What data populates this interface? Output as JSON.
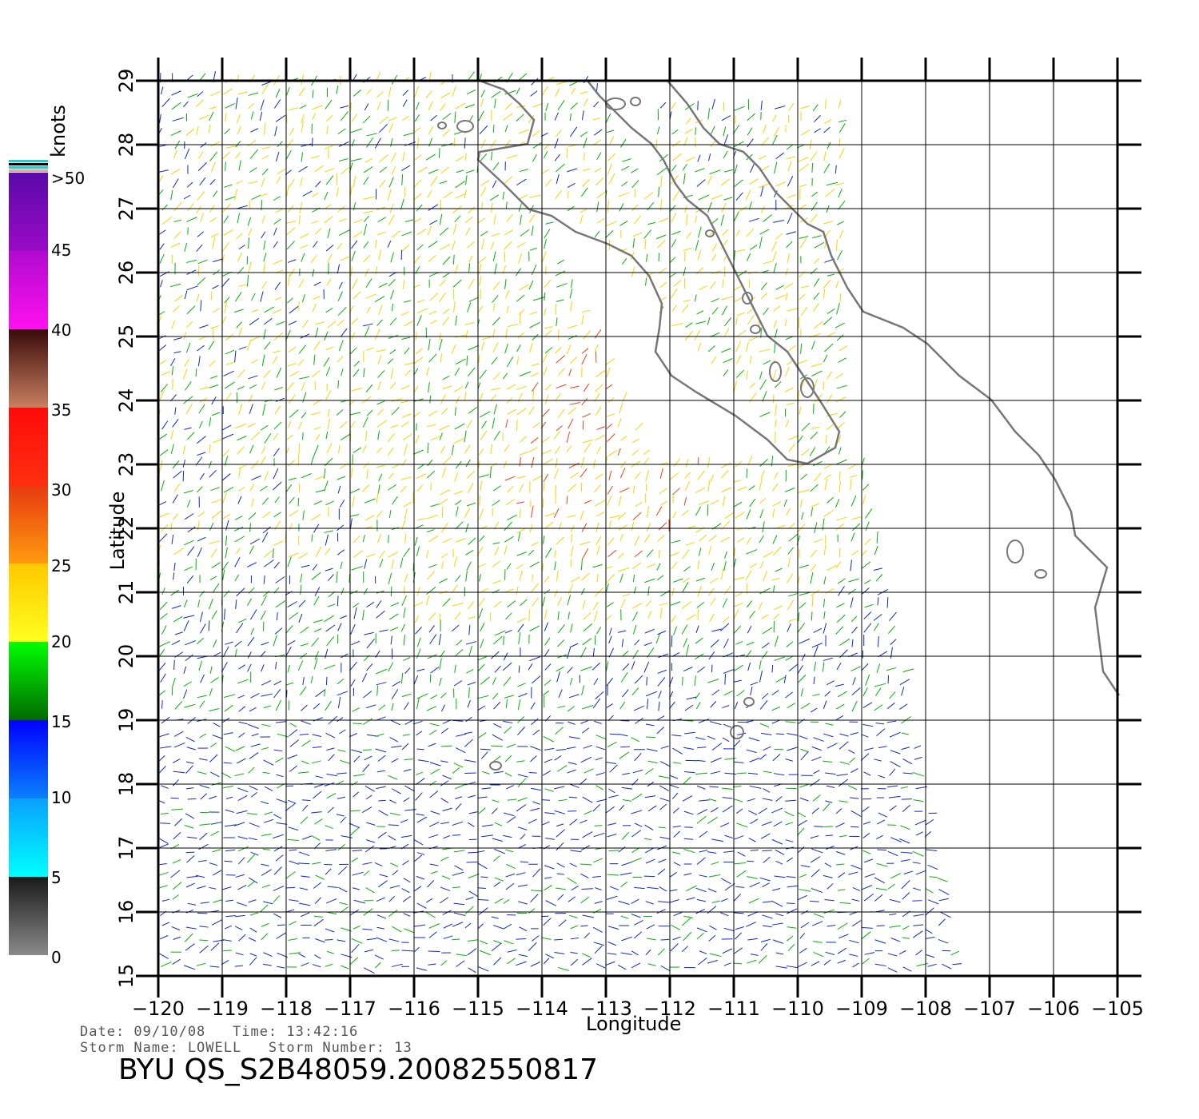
{
  "axes": {
    "xlabel": "Longitude",
    "ylabel": "Latitude",
    "lon_ticks": [
      "−120",
      "−119",
      "−118",
      "−117",
      "−116",
      "−115",
      "−114",
      "−113",
      "−112",
      "−111",
      "−110",
      "−109",
      "−108",
      "−107",
      "−106",
      "−105"
    ],
    "lat_ticks": [
      "15",
      "16",
      "17",
      "18",
      "19",
      "20",
      "21",
      "22",
      "23",
      "24",
      "25",
      "26",
      "27",
      "28",
      "29"
    ],
    "lon_range": [
      -120,
      -105
    ],
    "lat_range": [
      15,
      29
    ]
  },
  "colorbar": {
    "unit": "knots",
    "labels": [
      ">50",
      "45",
      "40",
      "35",
      "30",
      "25",
      "20",
      "15",
      "10",
      "5",
      "0"
    ],
    "bands": [
      {
        "range": "45-50",
        "top": "#5a0aa8",
        "bottom": "#9a0ac8"
      },
      {
        "range": "40-45",
        "top": "#b00ad0",
        "bottom": "#ff10f0"
      },
      {
        "range": "35-40",
        "top": "#3a0a0a",
        "bottom": "#c88060"
      },
      {
        "range": "30-35",
        "top": "#ff0a0a",
        "bottom": "#ff3010"
      },
      {
        "range": "25-30",
        "top": "#e83a10",
        "bottom": "#ff9a10"
      },
      {
        "range": "20-25",
        "top": "#ffc800",
        "bottom": "#ffff20"
      },
      {
        "range": "15-20",
        "top": "#00ff00",
        "bottom": "#006a00"
      },
      {
        "range": "10-15",
        "top": "#0000ff",
        "bottom": "#0a80ff"
      },
      {
        "range": "5-10",
        "top": "#0aa0ff",
        "bottom": "#00ffff"
      },
      {
        "range": "0-5",
        "top": "#1a1a1a",
        "bottom": "#8a8a8a"
      }
    ]
  },
  "meta": {
    "date_line": "Date: 09/10/08   Time: 13:42:16",
    "storm_line": "Storm Name: LOWELL   Storm Number: 13",
    "title": "BYU QS_S2B48059.20082550817"
  },
  "colors": {
    "coast": "#777777",
    "grid": "#000000",
    "wind_low": "#0a28d8",
    "wind_mid": "#00b400",
    "wind_high": "#ffd000",
    "wind_very_high": "#ff3a10"
  }
}
